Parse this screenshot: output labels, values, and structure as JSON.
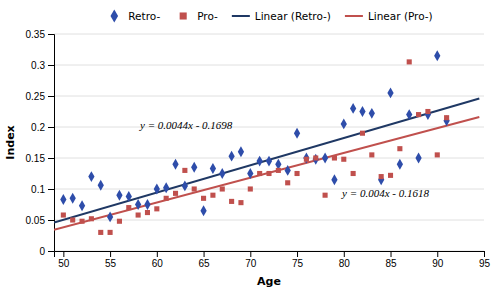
{
  "chart_data": {
    "type": "scatter",
    "xlabel": "Age",
    "ylabel": "Index",
    "xlim": [
      49,
      95
    ],
    "ylim": [
      0,
      0.35
    ],
    "xticks": [
      50,
      55,
      60,
      65,
      70,
      75,
      80,
      85,
      90,
      95
    ],
    "yticks": [
      0,
      0.05,
      0.1,
      0.15,
      0.2,
      0.25,
      0.3,
      0.35
    ],
    "grid": true,
    "legend": "top",
    "series": [
      {
        "name": "Retro-",
        "type": "scatter",
        "marker": "diamond",
        "color": "#2E4DAA",
        "x": [
          50,
          51,
          52,
          53,
          54,
          55,
          56,
          57,
          58,
          59,
          60,
          61,
          62,
          63,
          64,
          65,
          66,
          67,
          68,
          69,
          70,
          71,
          72,
          73,
          74,
          75,
          76,
          77,
          78,
          79,
          80,
          81,
          82,
          83,
          84,
          85,
          86,
          87,
          88,
          89,
          90,
          91
        ],
        "values": [
          0.083,
          0.085,
          0.073,
          0.12,
          0.106,
          0.055,
          0.09,
          0.088,
          0.075,
          0.075,
          0.1,
          0.102,
          0.14,
          0.105,
          0.135,
          0.065,
          0.133,
          0.125,
          0.153,
          0.16,
          0.125,
          0.145,
          0.145,
          0.14,
          0.13,
          0.19,
          0.15,
          0.148,
          0.15,
          0.115,
          0.205,
          0.23,
          0.225,
          0.222,
          0.115,
          0.255,
          0.14,
          0.22,
          0.15,
          0.22,
          0.315,
          0.21
        ]
      },
      {
        "name": "Pro-",
        "type": "scatter",
        "marker": "square",
        "color": "#C0504D",
        "x": [
          50,
          51,
          52,
          53,
          54,
          55,
          56,
          57,
          58,
          59,
          60,
          61,
          62,
          63,
          64,
          65,
          66,
          67,
          68,
          69,
          70,
          71,
          72,
          73,
          74,
          75,
          76,
          77,
          78,
          79,
          80,
          81,
          82,
          83,
          84,
          85,
          86,
          87,
          88,
          89,
          90,
          91
        ],
        "values": [
          0.058,
          0.05,
          0.048,
          0.052,
          0.03,
          0.03,
          0.048,
          0.07,
          0.058,
          0.062,
          0.068,
          0.085,
          0.093,
          0.13,
          0.1,
          0.085,
          0.09,
          0.1,
          0.08,
          0.078,
          0.1,
          0.125,
          0.125,
          0.13,
          0.11,
          0.125,
          0.148,
          0.15,
          0.09,
          0.15,
          0.148,
          0.125,
          0.19,
          0.155,
          0.12,
          0.122,
          0.165,
          0.305,
          0.22,
          0.225,
          0.155,
          0.215
        ]
      },
      {
        "name": "Linear (Retro-)",
        "type": "line",
        "line_style": "solid",
        "color": "#1F3864",
        "x": [
          49,
          94.5
        ],
        "values": [
          0.0458,
          0.246
        ]
      },
      {
        "name": "Linear (Pro-)",
        "type": "line",
        "line_style": "solid",
        "color": "#C0504D",
        "x": [
          49,
          94.5
        ],
        "values": [
          0.0342,
          0.2162
        ]
      }
    ],
    "annotations": [
      "y = 0.0044x - 0.1698",
      "y = 0.004x - 0.1618"
    ]
  }
}
